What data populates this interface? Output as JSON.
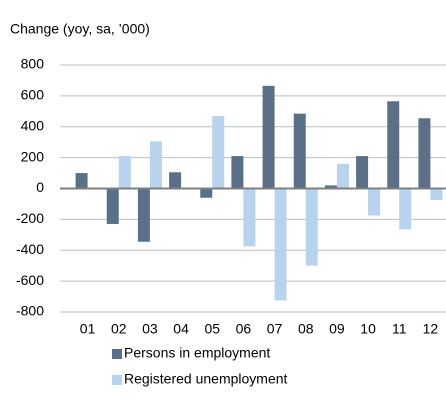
{
  "chart_data": {
    "type": "bar",
    "title": "Change (yoy, sa, ’000)",
    "categories": [
      "01",
      "02",
      "03",
      "04",
      "05",
      "06",
      "07",
      "08",
      "09",
      "10",
      "11",
      "12"
    ],
    "series": [
      {
        "name": "Persons in employment",
        "color": "#5a7089",
        "values": [
          100,
          -230,
          -345,
          105,
          -60,
          210,
          665,
          485,
          20,
          210,
          565,
          455
        ]
      },
      {
        "name": "Registered unemployment",
        "color": "#b7d3ee",
        "values": [
          0,
          210,
          305,
          0,
          470,
          -375,
          -725,
          -500,
          160,
          -175,
          -265,
          -75
        ]
      }
    ],
    "ylim": [
      -800,
      800
    ],
    "yticks": [
      -800,
      -600,
      -400,
      -200,
      0,
      200,
      400,
      600,
      800
    ],
    "grid": true
  }
}
